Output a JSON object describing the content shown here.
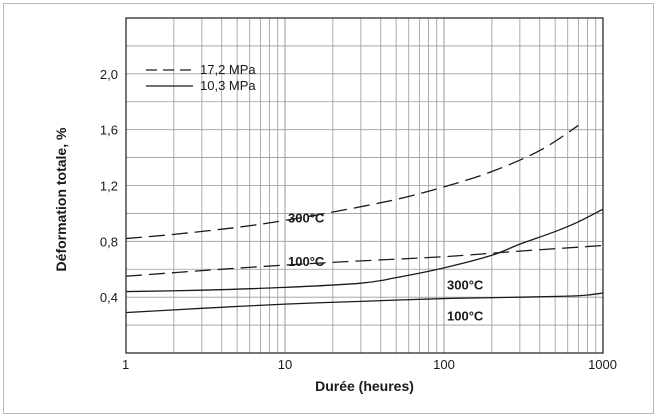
{
  "chart_data": {
    "type": "line",
    "title": "",
    "xlabel": "Durée (heures)",
    "ylabel": "Déformation totale, %",
    "x_scale": "log",
    "xlim": [
      1,
      1000
    ],
    "ylim": [
      0,
      2.4
    ],
    "grid": true,
    "legend_placement": "top-left",
    "x_ticks": [
      {
        "value": 1,
        "label": "1"
      },
      {
        "value": 10,
        "label": "10"
      },
      {
        "value": 100,
        "label": "100"
      },
      {
        "value": 1000,
        "label": "1000"
      }
    ],
    "y_ticks": [
      {
        "value": 0.4,
        "label": "0,4"
      },
      {
        "value": 0.8,
        "label": "0,8"
      },
      {
        "value": 1.2,
        "label": "1,2"
      },
      {
        "value": 1.6,
        "label": "1,6"
      },
      {
        "value": 2.0,
        "label": "2,0"
      }
    ],
    "legend": [
      {
        "label": "17,2 MPa",
        "style": "dashed"
      },
      {
        "label": "10,3 MPa",
        "style": "solid"
      }
    ],
    "series": [
      {
        "style": "dashed",
        "label": "300°C",
        "x": [
          1,
          2,
          5,
          10,
          20,
          50,
          100,
          200,
          400,
          700
        ],
        "y": [
          0.82,
          0.85,
          0.9,
          0.95,
          1.01,
          1.1,
          1.19,
          1.3,
          1.45,
          1.63
        ]
      },
      {
        "style": "dashed",
        "label": "100°C",
        "x": [
          1,
          3,
          10,
          30,
          100,
          300,
          1000
        ],
        "y": [
          0.55,
          0.59,
          0.63,
          0.66,
          0.69,
          0.73,
          0.77
        ]
      },
      {
        "style": "solid",
        "label": "300°C",
        "x": [
          1,
          3,
          10,
          30,
          50,
          100,
          200,
          300,
          500,
          700,
          1000
        ],
        "y": [
          0.44,
          0.45,
          0.47,
          0.5,
          0.54,
          0.61,
          0.7,
          0.78,
          0.87,
          0.94,
          1.03
        ]
      },
      {
        "style": "solid",
        "label": "100°C",
        "x": [
          1,
          3,
          10,
          30,
          100,
          300,
          700,
          1000
        ],
        "y": [
          0.29,
          0.32,
          0.35,
          0.37,
          0.39,
          0.4,
          0.41,
          0.43
        ]
      }
    ],
    "series_labels": [
      {
        "text": "300°C",
        "x": 10,
        "y": 0.97
      },
      {
        "text": "100°C",
        "x": 10,
        "y": 0.66
      },
      {
        "text": "300°C",
        "x": 100,
        "y": 0.49
      },
      {
        "text": "100°C",
        "x": 100,
        "y": 0.27
      }
    ]
  },
  "colors": {
    "line": "#1a1a1a",
    "grid": "#9a9a9a",
    "frame_border": "#b8b8b8"
  }
}
